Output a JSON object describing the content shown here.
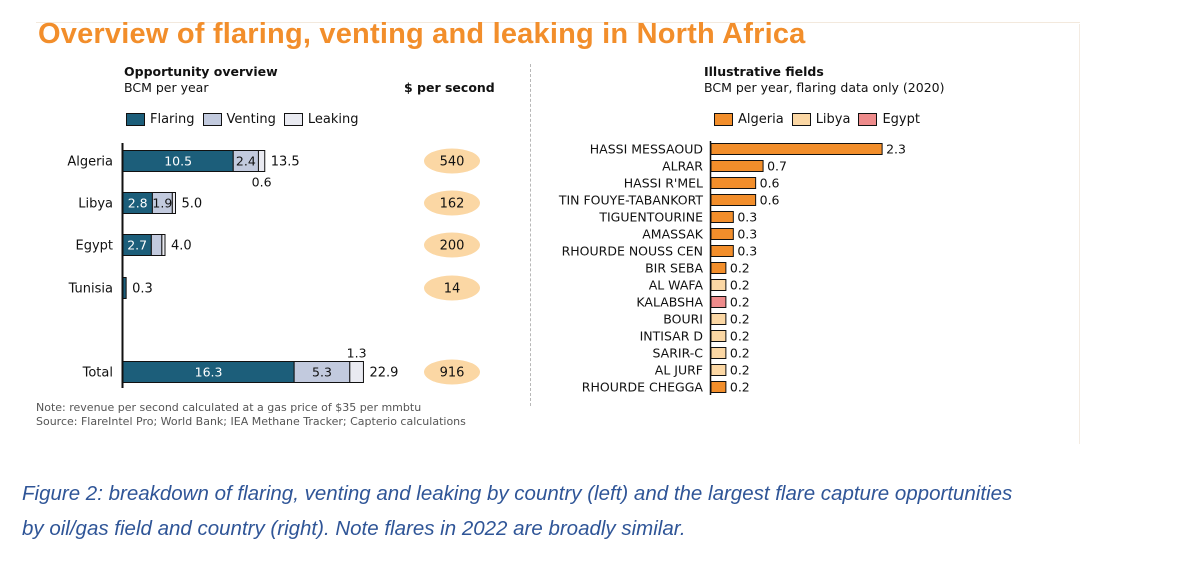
{
  "title": "Overview of flaring, venting and leaking in North Africa",
  "left_panel": {
    "title": "Opportunity overview",
    "subtitle": "BCM per year",
    "dps_header": "$ per second",
    "legend": [
      {
        "label": "Flaring",
        "color": "#1c5e7a"
      },
      {
        "label": "Venting",
        "color": "#c2cade"
      },
      {
        "label": "Leaking",
        "color": "#e9eaf1"
      }
    ]
  },
  "right_panel": {
    "title": "Illustrative fields",
    "subtitle": "BCM per year, flaring data only (2020)",
    "legend": [
      {
        "label": "Algeria",
        "color": "#f28e2b"
      },
      {
        "label": "Libya",
        "color": "#fbd7a4"
      },
      {
        "label": "Egypt",
        "color": "#ee8b8b"
      }
    ]
  },
  "notes": {
    "line1": "Note: revenue per second calculated at a gas price of $35 per mmbtu",
    "line2": "Source: FlareIntel Pro; World Bank; IEA Methane Tracker; Capterio calculations"
  },
  "caption": {
    "line1": "Figure 2: breakdown of flaring, venting and leaking by country (left) and the largest flare capture opportunities",
    "line2": "by oil/gas field and country (right).  Note flares in 2022 are broadly similar."
  },
  "chart_data": [
    {
      "type": "bar",
      "orientation": "horizontal",
      "stacked": true,
      "title": "Opportunity overview",
      "subtitle": "BCM per year",
      "categories": [
        "Algeria",
        "Libya",
        "Egypt",
        "Tunisia",
        "Total"
      ],
      "series": [
        {
          "name": "Flaring",
          "values": [
            10.5,
            2.8,
            2.7,
            0.3,
            16.3
          ]
        },
        {
          "name": "Venting",
          "values": [
            2.4,
            1.9,
            1.0,
            0.0,
            5.3
          ]
        },
        {
          "name": "Leaking",
          "values": [
            0.6,
            0.3,
            0.3,
            0.0,
            1.3
          ]
        }
      ],
      "segment_labels": [
        [
          "10.5",
          "2.4",
          "0.6"
        ],
        [
          "2.8",
          "1.9",
          ""
        ],
        [
          "2.7",
          "",
          ""
        ],
        [
          "",
          "",
          ""
        ],
        [
          "16.3",
          "5.3",
          "1.3"
        ]
      ],
      "totals": [
        13.5,
        5.0,
        4.0,
        0.3,
        22.9
      ],
      "totals_labels": [
        "13.5",
        "5.0",
        "4.0",
        "0.3",
        "22.9"
      ],
      "dollars_per_second": [
        540,
        162,
        200,
        14,
        916
      ],
      "dollars_per_second_labels": [
        "540",
        "162",
        "200",
        "14",
        "916"
      ],
      "dollars_per_second_color": "#fbd7a4"
    },
    {
      "type": "bar",
      "orientation": "horizontal",
      "title": "Illustrative fields",
      "subtitle": "BCM per year, flaring data only (2020)",
      "categories": [
        "HASSI MESSAOUD",
        "ALRAR",
        "HASSI R'MEL",
        "TIN FOUYE-TABANKORT",
        "TIGUENTOURINE",
        "AMASSAK",
        "RHOURDE NOUSS CEN",
        "BIR SEBA",
        "AL WAFA",
        "KALABSHA",
        "BOURI",
        "INTISAR D",
        "SARIR-C",
        "AL JURF",
        "RHOURDE CHEGGA"
      ],
      "values": [
        2.3,
        0.7,
        0.6,
        0.6,
        0.3,
        0.3,
        0.3,
        0.2,
        0.2,
        0.2,
        0.2,
        0.2,
        0.2,
        0.2,
        0.2
      ],
      "value_labels": [
        "2.3",
        "0.7",
        "0.6",
        "0.6",
        "0.3",
        "0.3",
        "0.3",
        "0.2",
        "0.2",
        "0.2",
        "0.2",
        "0.2",
        "0.2",
        "0.2",
        "0.2"
      ],
      "country": [
        "Algeria",
        "Algeria",
        "Algeria",
        "Algeria",
        "Algeria",
        "Algeria",
        "Algeria",
        "Algeria",
        "Libya",
        "Egypt",
        "Libya",
        "Libya",
        "Libya",
        "Libya",
        "Algeria"
      ]
    }
  ]
}
